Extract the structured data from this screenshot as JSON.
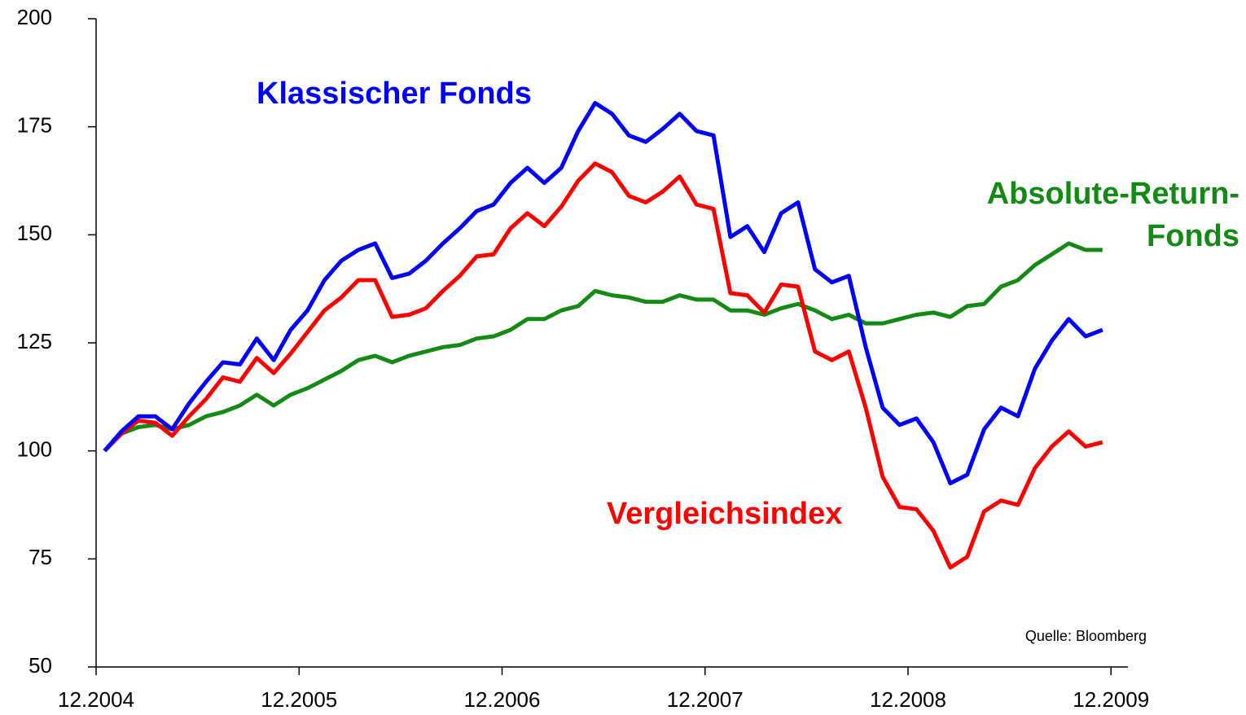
{
  "chart_data": {
    "type": "line",
    "source": "Quelle: Bloomberg",
    "x": [
      "12.2004",
      "01.2005",
      "02.2005",
      "03.2005",
      "04.2005",
      "05.2005",
      "06.2005",
      "07.2005",
      "08.2005",
      "09.2005",
      "10.2005",
      "11.2005",
      "12.2005",
      "01.2006",
      "02.2006",
      "03.2006",
      "04.2006",
      "05.2006",
      "06.2006",
      "07.2006",
      "08.2006",
      "09.2006",
      "10.2006",
      "11.2006",
      "12.2006",
      "01.2007",
      "02.2007",
      "03.2007",
      "04.2007",
      "05.2007",
      "06.2007",
      "07.2007",
      "08.2007",
      "09.2007",
      "10.2007",
      "11.2007",
      "12.2007",
      "01.2008",
      "02.2008",
      "03.2008",
      "04.2008",
      "05.2008",
      "06.2008",
      "07.2008",
      "08.2008",
      "09.2008",
      "10.2008",
      "11.2008",
      "12.2008",
      "01.2009",
      "02.2009",
      "03.2009",
      "04.2009",
      "05.2009",
      "06.2009",
      "07.2009",
      "08.2009",
      "09.2009",
      "10.2009",
      "11.2009"
    ],
    "series": [
      {
        "name": "Klassischer Fonds",
        "color": "#0000ff",
        "values": [
          100,
          104.5,
          108,
          108,
          105,
          111,
          116,
          120.5,
          120,
          126,
          121,
          128,
          132.5,
          139.5,
          144,
          146.5,
          148,
          140,
          141,
          144,
          148,
          151.5,
          155.5,
          157,
          162,
          165.5,
          162,
          165.5,
          174,
          180.5,
          178,
          173,
          171.5,
          174.5,
          178,
          174,
          173,
          149.5,
          152,
          146,
          155,
          157.5,
          142,
          139,
          140.5,
          124,
          110,
          106,
          107.5,
          102,
          92.5,
          94.5,
          105,
          110,
          108,
          119,
          125.5,
          130.5,
          126.5,
          128
        ]
      },
      {
        "name": "Vergleichsindex",
        "color": "#ff0000",
        "values": [
          100,
          104,
          107,
          106.5,
          103.5,
          108,
          112,
          117,
          116,
          121.5,
          118,
          122.5,
          127.5,
          132.5,
          135.5,
          139.5,
          139.5,
          131,
          131.5,
          133,
          137,
          140.5,
          145,
          145.5,
          151.5,
          155,
          152,
          156.5,
          162.5,
          166.5,
          164.5,
          159,
          157.5,
          160,
          163.5,
          157,
          156,
          136.5,
          136,
          132,
          138.5,
          138,
          123,
          121,
          123,
          110,
          94,
          87,
          86.5,
          81.5,
          73,
          75.5,
          86,
          88.5,
          87.5,
          96,
          101,
          104.5,
          101,
          102
        ]
      },
      {
        "name": "Absolute-Return-Fonds",
        "color": "#138a13",
        "values": [
          100,
          104,
          105.5,
          106,
          105,
          106,
          108,
          109,
          110.5,
          113,
          110.5,
          113,
          114.5,
          116.5,
          118.5,
          121,
          122,
          120.5,
          122,
          123,
          124,
          124.5,
          126,
          126.5,
          128,
          130.5,
          130.5,
          132.5,
          133.5,
          137,
          136,
          135.5,
          134.5,
          134.5,
          136,
          135,
          135,
          132.5,
          132.5,
          131.5,
          133,
          134,
          132.5,
          130.5,
          131.5,
          129.5,
          129.5,
          130.5,
          131.5,
          132,
          131,
          133.5,
          134,
          138,
          139.5,
          143,
          145.5,
          148,
          146.5,
          146.5
        ]
      }
    ],
    "xlim": [
      "12.2004",
      "01.2010"
    ],
    "xticks": [
      "12.2004",
      "12.2005",
      "12.2006",
      "12.2007",
      "12.2008",
      "12.2009"
    ],
    "ylim": [
      50,
      200
    ],
    "yticks": [
      50,
      75,
      100,
      125,
      150,
      175,
      200
    ],
    "grid": false
  }
}
